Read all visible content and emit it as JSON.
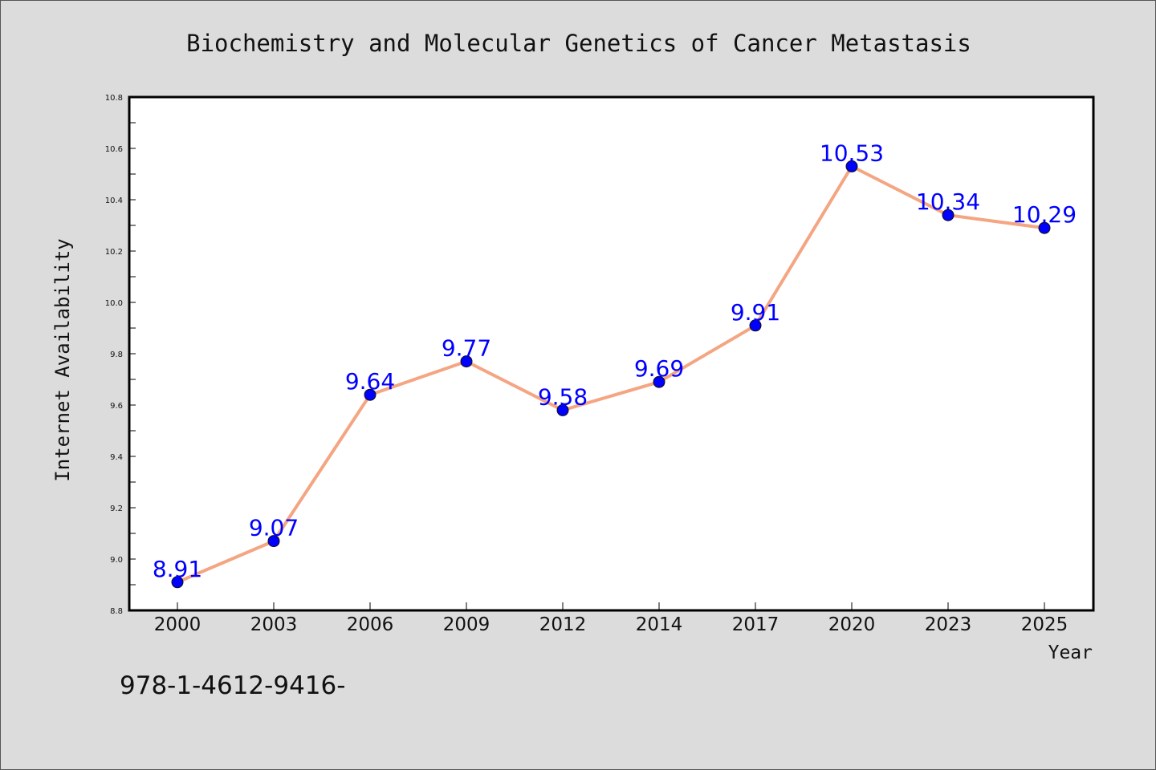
{
  "chart_data": {
    "type": "line",
    "title": "Biochemistry and Molecular Genetics of Cancer Metastasis",
    "xlabel": "Year",
    "ylabel": "Internet Availability",
    "categories": [
      "2000",
      "2003",
      "2006",
      "2009",
      "2012",
      "2014",
      "2017",
      "2020",
      "2023",
      "2025"
    ],
    "values": [
      8.91,
      9.07,
      9.64,
      9.77,
      9.58,
      9.69,
      9.91,
      10.53,
      10.34,
      10.29
    ],
    "data_labels": [
      "8.91",
      "9.07",
      "9.64",
      "9.77",
      "9.58",
      "9.69",
      "9.91",
      "10.53",
      "10.34",
      "10.29"
    ],
    "ylim": [
      8.8,
      10.8
    ],
    "yticks": [
      "8.8",
      "9.0",
      "9.2",
      "9.4",
      "9.6",
      "9.8",
      "10.0",
      "10.2",
      "10.4",
      "10.6",
      "10.8"
    ],
    "grid": false,
    "legend": "none",
    "colors": {
      "line": "#f4a582",
      "marker": "#0000ff",
      "data_label": "#0000ff",
      "background": "#dcdcdc",
      "plot_area": "#ffffff"
    }
  },
  "annotation_text": "978-1-4612-9416-"
}
